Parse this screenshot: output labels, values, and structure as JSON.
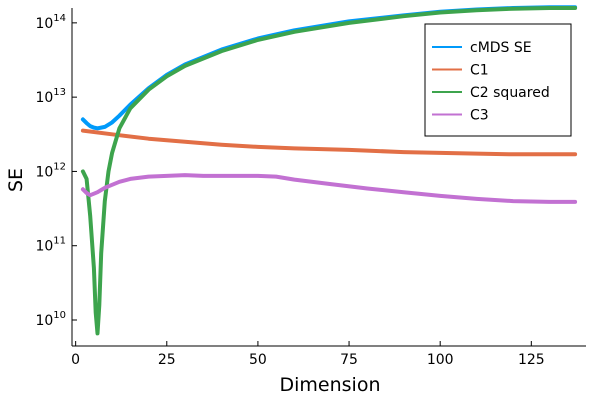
{
  "chart_data": {
    "type": "line",
    "title": "",
    "xlabel": "Dimension",
    "ylabel": "SE",
    "xlim": [
      -1,
      140
    ],
    "ylim_log10": [
      9.65,
      14.2
    ],
    "yscale": "log",
    "grid": false,
    "legend_placement": "top-right",
    "x_ticks": [
      0,
      25,
      50,
      75,
      100,
      125
    ],
    "y_ticks": [
      {
        "base": "10",
        "exp": "10",
        "log10": 10
      },
      {
        "base": "10",
        "exp": "11",
        "log10": 11
      },
      {
        "base": "10",
        "exp": "12",
        "log10": 12
      },
      {
        "base": "10",
        "exp": "13",
        "log10": 13
      },
      {
        "base": "10",
        "exp": "14",
        "log10": 14
      }
    ],
    "series": [
      {
        "name": "cMDS SE",
        "color": "#009AFA",
        "x": [
          2,
          3,
          4,
          5,
          6,
          7,
          8,
          10,
          12,
          15,
          20,
          25,
          30,
          40,
          50,
          60,
          75,
          90,
          100,
          110,
          120,
          130,
          137
        ],
        "log10": [
          12.7,
          12.65,
          12.61,
          12.59,
          12.58,
          12.59,
          12.6,
          12.66,
          12.75,
          12.9,
          13.12,
          13.3,
          13.44,
          13.64,
          13.79,
          13.9,
          14.02,
          14.1,
          14.15,
          14.18,
          14.2,
          14.21,
          14.21
        ]
      },
      {
        "name": "C1",
        "color": "#E26F46",
        "x": [
          2,
          10,
          20,
          30,
          40,
          50,
          60,
          75,
          90,
          100,
          110,
          120,
          130,
          137
        ],
        "log10": [
          12.55,
          12.5,
          12.44,
          12.4,
          12.36,
          12.33,
          12.31,
          12.29,
          12.26,
          12.25,
          12.24,
          12.23,
          12.23,
          12.23
        ]
      },
      {
        "name": "C2 squared",
        "color": "#3DA44D",
        "x": [
          2,
          3,
          4,
          5,
          5.5,
          6,
          6.5,
          7,
          8,
          9,
          10,
          12,
          15,
          20,
          25,
          30,
          40,
          50,
          60,
          75,
          90,
          100,
          110,
          120,
          130,
          137
        ],
        "log10": [
          12.0,
          11.9,
          11.4,
          10.7,
          10.1,
          9.82,
          10.2,
          10.9,
          11.6,
          12.0,
          12.25,
          12.58,
          12.85,
          13.1,
          13.28,
          13.42,
          13.62,
          13.77,
          13.88,
          14.0,
          14.09,
          14.14,
          14.17,
          14.19,
          14.2,
          14.2
        ]
      },
      {
        "name": "C3",
        "color": "#C271D2",
        "x": [
          2,
          3,
          4,
          5,
          6,
          7,
          8,
          10,
          12,
          15,
          20,
          25,
          30,
          35,
          40,
          45,
          50,
          55,
          60,
          70,
          80,
          90,
          100,
          110,
          120,
          130,
          137
        ],
        "log10": [
          11.76,
          11.71,
          11.68,
          11.7,
          11.72,
          11.75,
          11.78,
          11.82,
          11.86,
          11.9,
          11.93,
          11.94,
          11.95,
          11.94,
          11.94,
          11.94,
          11.94,
          11.93,
          11.89,
          11.83,
          11.77,
          11.72,
          11.67,
          11.63,
          11.6,
          11.59,
          11.59
        ]
      }
    ]
  }
}
